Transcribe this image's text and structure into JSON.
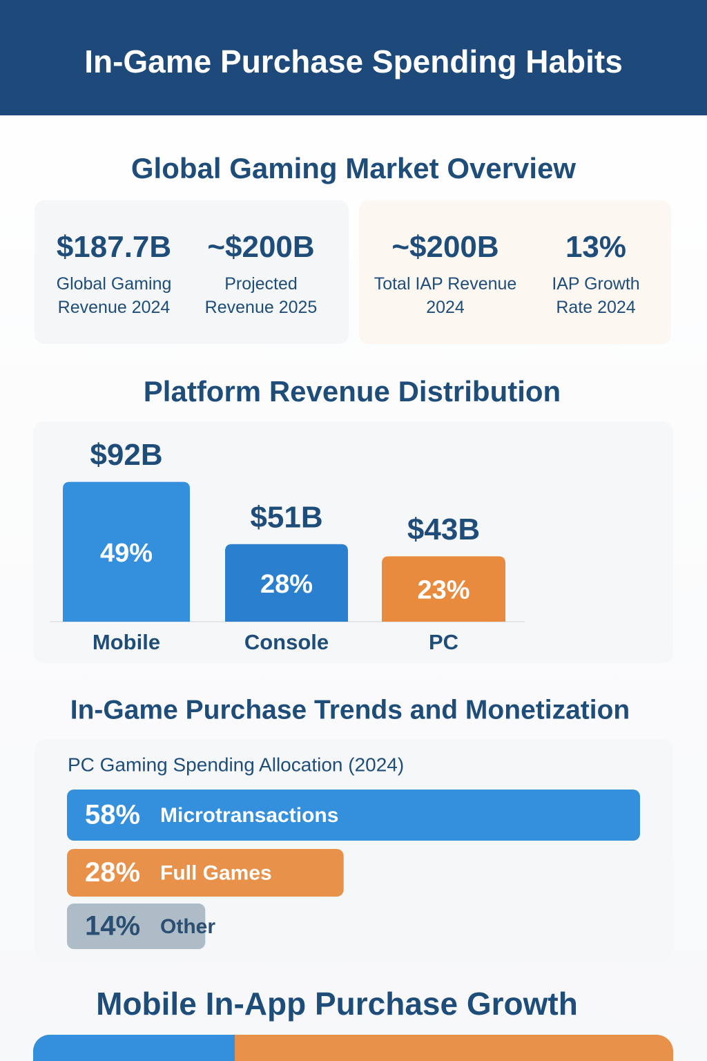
{
  "header": {
    "title": "In-Game Purchase Spending Habits"
  },
  "market_overview": {
    "title": "Global Gaming Market Overview",
    "stats": [
      {
        "value": "$187.7B",
        "label": "Global Gaming Revenue 2024"
      },
      {
        "value": "~$200B",
        "label": "Projected Revenue 2025"
      },
      {
        "value": "~$200B",
        "label": "Total IAP Revenue 2024"
      },
      {
        "value": "13%",
        "label": "IAP Growth Rate 2024"
      }
    ]
  },
  "platform_revenue": {
    "title": "Platform Revenue Distribution",
    "categories": [
      "Mobile",
      "Console",
      "PC"
    ],
    "values": [
      92,
      51,
      43
    ],
    "value_labels": [
      "$92B",
      "$51B",
      "$43B"
    ],
    "share_labels": [
      "49%",
      "28%",
      "23%"
    ],
    "colors": [
      "#3490dc",
      "#2a7fcf",
      "#e88b3f"
    ]
  },
  "iap_trends": {
    "title": "In-Game Purchase Trends and Monetization",
    "subtitle": "PC Gaming Spending Allocation (2024)",
    "categories": [
      "Microtransactions",
      "Full Games",
      "Other"
    ],
    "values": [
      58,
      28,
      14
    ],
    "value_labels": [
      "58%",
      "28%",
      "14%"
    ],
    "colors": [
      "#3490dc",
      "#e8914a",
      "#aebcc8"
    ]
  },
  "mobile_growth": {
    "title": "Mobile In-App Purchase Growth"
  }
}
